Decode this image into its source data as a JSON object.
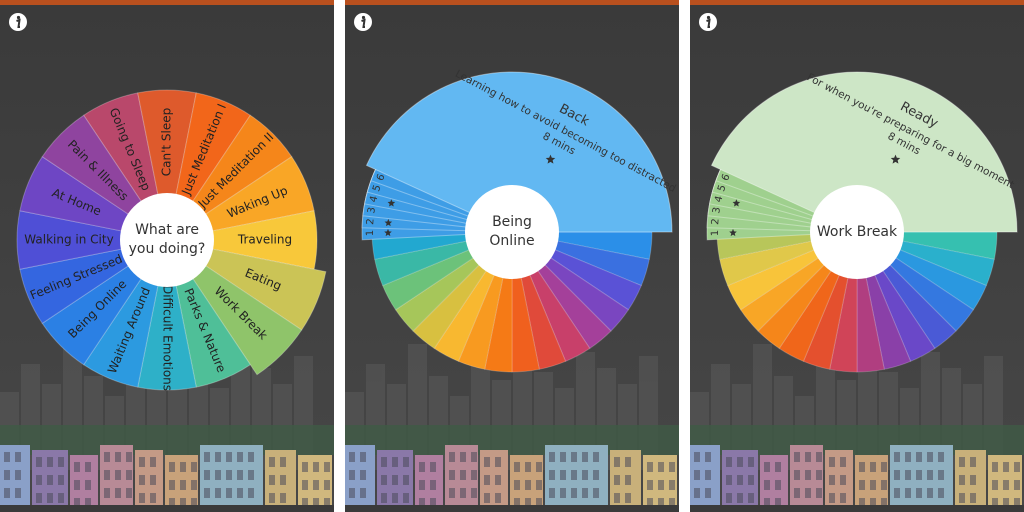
{
  "screens": [
    {
      "center": "What are you doing?",
      "segments": [
        "Going to Sleep",
        "Can't Sleep",
        "Just Meditation I",
        "Just Meditation II",
        "Waking Up",
        "Traveling",
        "Eating",
        "Work Break",
        "Parks & Nature",
        "Difficult Emotions",
        "Waiting Around",
        "Being Online",
        "Feeling Stressed",
        "Walking in City",
        "At Home",
        "Pain & Illness"
      ]
    },
    {
      "center": "Being Online",
      "tracks": [
        "1",
        "2",
        "3",
        "4",
        "5",
        "6"
      ],
      "card": {
        "title": "Back",
        "description": "Learning how to avoid becoming too distracted",
        "duration": "8 mins"
      }
    },
    {
      "center": "Work Break",
      "tracks": [
        "1",
        "2",
        "3",
        "4",
        "5",
        "6"
      ],
      "card": {
        "title": "Ready",
        "description": "For when you're preparing for a big moment",
        "duration": "8 mins"
      }
    }
  ]
}
